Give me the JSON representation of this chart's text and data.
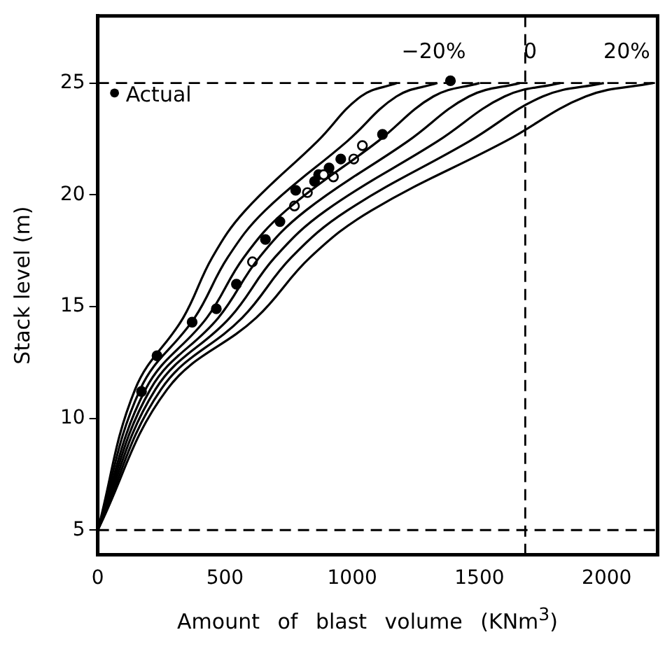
{
  "chart_data": {
    "type": "line",
    "xlabel": "Amount of blast volume (KNm$^{3}$)",
    "ylabel": "Stack level (m)",
    "xlim": [
      0,
      2200
    ],
    "xticks": [
      0,
      500,
      1000,
      1500,
      2000
    ],
    "ylim": [
      3.9,
      28
    ],
    "yticks": [
      5,
      10,
      15,
      20,
      25
    ],
    "grid": false,
    "legend": "top left",
    "series": [
      {
        "color": "#000000",
        "marker": "none",
        "x": [
          0,
          147,
          336,
          450,
          580,
          864,
          1034,
          1176
        ],
        "values": [
          5,
          11.3,
          14.5,
          17.2,
          19.3,
          22.4,
          24.4,
          25
        ]
      },
      {
        "color": "#000000",
        "marker": "none",
        "x": [
          0,
          167,
          381,
          511,
          658,
          981,
          1174,
          1335
        ],
        "values": [
          5,
          11.3,
          14.5,
          17.2,
          19.3,
          22.4,
          24.4,
          25
        ]
      },
      {
        "color": "#000000",
        "marker": "none",
        "x": [
          0,
          188,
          429,
          574,
          740,
          1102,
          1319,
          1500
        ],
        "values": [
          5,
          11.3,
          14.5,
          17.2,
          19.3,
          22.4,
          24.4,
          25
        ]
      },
      {
        "color": "#000000",
        "marker": "none",
        "x": [
          0,
          207,
          474,
          635,
          818,
          1219,
          1459,
          1659
        ],
        "values": [
          5,
          11.3,
          14.5,
          17.2,
          19.3,
          22.4,
          24.4,
          25
        ]
      },
      {
        "color": "#000000",
        "marker": "none",
        "x": [
          0,
          227,
          519,
          696,
          897,
          1336,
          1599,
          1818
        ],
        "values": [
          5,
          11.3,
          14.5,
          17.2,
          19.3,
          22.4,
          24.4,
          25
        ]
      },
      {
        "color": "#000000",
        "marker": "none",
        "x": [
          0,
          249,
          568,
          761,
          981,
          1461,
          1749,
          1989
        ],
        "values": [
          5,
          11.3,
          14.5,
          17.2,
          19.3,
          22.4,
          24.4,
          25
        ]
      },
      {
        "color": "#000000",
        "marker": "none",
        "x": [
          0,
          273,
          623,
          835,
          1076,
          1603,
          1918,
          2182
        ],
        "values": [
          5,
          11.3,
          14.5,
          17.2,
          19.3,
          22.4,
          24.4,
          25
        ]
      },
      {
        "type": "scatter",
        "color": "#ffffff",
        "marker": "circle",
        "x": [
          608,
          773,
          824,
          888,
          926,
          1006,
          1040
        ],
        "values": [
          17.0,
          19.5,
          20.1,
          20.9,
          20.8,
          21.6,
          22.2
        ]
      },
      {
        "type": "scatter",
        "name": "Actual",
        "color": "#000000",
        "marker": "circle",
        "x": [
          172,
          233,
          371,
          466,
          545,
          659,
          716,
          778,
          852,
          868,
          909,
          955,
          1119,
          1386
        ],
        "values": [
          11.2,
          12.8,
          14.3,
          14.9,
          16.0,
          18.0,
          18.8,
          20.2,
          20.6,
          20.9,
          21.2,
          21.6,
          22.7,
          25.1
        ]
      }
    ],
    "ref_lines": [
      {
        "axis": "y",
        "value": 25,
        "line_style": "dashed",
        "color": "#000000"
      },
      {
        "axis": "y",
        "value": 5,
        "line_style": "dashed",
        "color": "#000000"
      },
      {
        "axis": "x",
        "value": 1680,
        "line_style": "dashed",
        "color": "#000000"
      }
    ],
    "annotations": [
      "−20%",
      "0",
      "20%"
    ]
  }
}
